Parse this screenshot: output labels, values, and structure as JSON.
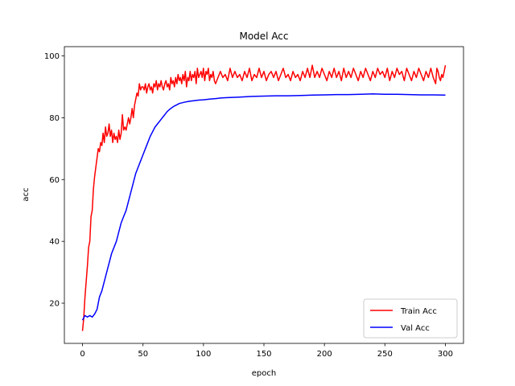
{
  "chart_data": {
    "type": "line",
    "title": "Model Acc",
    "xlabel": "epoch",
    "ylabel": "acc",
    "xlim": [
      -15,
      315
    ],
    "ylim": [
      7,
      103
    ],
    "xticks": [
      0,
      50,
      100,
      150,
      200,
      250,
      300
    ],
    "yticks": [
      20,
      40,
      60,
      80,
      100
    ],
    "grid": false,
    "legend_position": "lower-right",
    "series": [
      {
        "name": "Train Acc",
        "color": "#ff0000",
        "points": [
          [
            0,
            11
          ],
          [
            1,
            15
          ],
          [
            2,
            22
          ],
          [
            3,
            27
          ],
          [
            4,
            32
          ],
          [
            5,
            38
          ],
          [
            6,
            40
          ],
          [
            7,
            48
          ],
          [
            8,
            50
          ],
          [
            9,
            57
          ],
          [
            10,
            61
          ],
          [
            11,
            64
          ],
          [
            12,
            67
          ],
          [
            13,
            70
          ],
          [
            14,
            69
          ],
          [
            15,
            72
          ],
          [
            16,
            71
          ],
          [
            17,
            75
          ],
          [
            18,
            72
          ],
          [
            19,
            77
          ],
          [
            20,
            74
          ],
          [
            21,
            75
          ],
          [
            22,
            78
          ],
          [
            23,
            74
          ],
          [
            24,
            76
          ],
          [
            25,
            72
          ],
          [
            26,
            75
          ],
          [
            27,
            73
          ],
          [
            28,
            74
          ],
          [
            29,
            72
          ],
          [
            30,
            76
          ],
          [
            31,
            73
          ],
          [
            32,
            75
          ],
          [
            33,
            81
          ],
          [
            34,
            76
          ],
          [
            35,
            77
          ],
          [
            36,
            76
          ],
          [
            37,
            78
          ],
          [
            38,
            80
          ],
          [
            39,
            78
          ],
          [
            40,
            80
          ],
          [
            41,
            83
          ],
          [
            42,
            80
          ],
          [
            43,
            84
          ],
          [
            44,
            86
          ],
          [
            45,
            88
          ],
          [
            46,
            87
          ],
          [
            47,
            91
          ],
          [
            48,
            89
          ],
          [
            49,
            90
          ],
          [
            50,
            90
          ],
          [
            51,
            89
          ],
          [
            52,
            91
          ],
          [
            53,
            88
          ],
          [
            54,
            90
          ],
          [
            55,
            91
          ],
          [
            56,
            89
          ],
          [
            57,
            90
          ],
          [
            58,
            88
          ],
          [
            59,
            91
          ],
          [
            60,
            90
          ],
          [
            61,
            92
          ],
          [
            62,
            89
          ],
          [
            63,
            91
          ],
          [
            64,
            90
          ],
          [
            65,
            92
          ],
          [
            66,
            90
          ],
          [
            67,
            89
          ],
          [
            68,
            91
          ],
          [
            69,
            92
          ],
          [
            70,
            90
          ],
          [
            71,
            91
          ],
          [
            72,
            89
          ],
          [
            73,
            93
          ],
          [
            74,
            91
          ],
          [
            75,
            92
          ],
          [
            76,
            90
          ],
          [
            77,
            93
          ],
          [
            78,
            91
          ],
          [
            79,
            94
          ],
          [
            80,
            92
          ],
          [
            81,
            93
          ],
          [
            82,
            91
          ],
          [
            83,
            94
          ],
          [
            84,
            92
          ],
          [
            85,
            95
          ],
          [
            86,
            90
          ],
          [
            87,
            93
          ],
          [
            88,
            92
          ],
          [
            89,
            95
          ],
          [
            90,
            92
          ],
          [
            91,
            94
          ],
          [
            92,
            93
          ],
          [
            93,
            95
          ],
          [
            94,
            91
          ],
          [
            95,
            96
          ],
          [
            96,
            93
          ],
          [
            97,
            94
          ],
          [
            98,
            95
          ],
          [
            99,
            93
          ],
          [
            100,
            96
          ],
          [
            101,
            92
          ],
          [
            102,
            95
          ],
          [
            103,
            94
          ],
          [
            104,
            96
          ],
          [
            105,
            92
          ],
          [
            106,
            94
          ],
          [
            107,
            93
          ],
          [
            108,
            95
          ],
          [
            109,
            92
          ],
          [
            110,
            91
          ],
          [
            112,
            93
          ],
          [
            114,
            95
          ],
          [
            116,
            93
          ],
          [
            118,
            94
          ],
          [
            120,
            92
          ],
          [
            122,
            96
          ],
          [
            124,
            93
          ],
          [
            126,
            95
          ],
          [
            128,
            93
          ],
          [
            130,
            94
          ],
          [
            132,
            92
          ],
          [
            134,
            95
          ],
          [
            136,
            93
          ],
          [
            138,
            96
          ],
          [
            140,
            92
          ],
          [
            142,
            94
          ],
          [
            144,
            93
          ],
          [
            146,
            96
          ],
          [
            148,
            93
          ],
          [
            150,
            95
          ],
          [
            152,
            92
          ],
          [
            154,
            94
          ],
          [
            156,
            95
          ],
          [
            158,
            93
          ],
          [
            160,
            95
          ],
          [
            162,
            92
          ],
          [
            164,
            94
          ],
          [
            166,
            96
          ],
          [
            168,
            93
          ],
          [
            170,
            94
          ],
          [
            172,
            92
          ],
          [
            174,
            95
          ],
          [
            176,
            93
          ],
          [
            178,
            94
          ],
          [
            180,
            92
          ],
          [
            182,
            95
          ],
          [
            184,
            93
          ],
          [
            186,
            96
          ],
          [
            188,
            93
          ],
          [
            190,
            97
          ],
          [
            192,
            93
          ],
          [
            194,
            95
          ],
          [
            196,
            93
          ],
          [
            198,
            96
          ],
          [
            200,
            94
          ],
          [
            202,
            92
          ],
          [
            204,
            95
          ],
          [
            206,
            93
          ],
          [
            208,
            96
          ],
          [
            210,
            93
          ],
          [
            212,
            95
          ],
          [
            214,
            92
          ],
          [
            216,
            96
          ],
          [
            218,
            93
          ],
          [
            220,
            95
          ],
          [
            222,
            93
          ],
          [
            224,
            96
          ],
          [
            226,
            94
          ],
          [
            228,
            92
          ],
          [
            230,
            95
          ],
          [
            232,
            93
          ],
          [
            234,
            96
          ],
          [
            236,
            94
          ],
          [
            238,
            92
          ],
          [
            240,
            95
          ],
          [
            242,
            93
          ],
          [
            244,
            96
          ],
          [
            246,
            94
          ],
          [
            248,
            95
          ],
          [
            250,
            93
          ],
          [
            252,
            96
          ],
          [
            254,
            92
          ],
          [
            256,
            95
          ],
          [
            258,
            93
          ],
          [
            260,
            96
          ],
          [
            262,
            94
          ],
          [
            264,
            95
          ],
          [
            266,
            92
          ],
          [
            268,
            96
          ],
          [
            270,
            94
          ],
          [
            272,
            92
          ],
          [
            274,
            95
          ],
          [
            276,
            93
          ],
          [
            278,
            96
          ],
          [
            280,
            94
          ],
          [
            282,
            92
          ],
          [
            284,
            95
          ],
          [
            286,
            93
          ],
          [
            288,
            96
          ],
          [
            290,
            93
          ],
          [
            292,
            91
          ],
          [
            293,
            96
          ],
          [
            294,
            95
          ],
          [
            295,
            93
          ],
          [
            296,
            92
          ],
          [
            297,
            94
          ],
          [
            298,
            93
          ],
          [
            299,
            95
          ],
          [
            300,
            97
          ]
        ]
      },
      {
        "name": "Val Acc",
        "color": "#0000ff",
        "points": [
          [
            0,
            14.5
          ],
          [
            2,
            16
          ],
          [
            4,
            15.5
          ],
          [
            6,
            16
          ],
          [
            8,
            15.5
          ],
          [
            10,
            16.5
          ],
          [
            12,
            18
          ],
          [
            14,
            22
          ],
          [
            16,
            24
          ],
          [
            18,
            27
          ],
          [
            20,
            30
          ],
          [
            22,
            33
          ],
          [
            24,
            36
          ],
          [
            26,
            38
          ],
          [
            28,
            40
          ],
          [
            30,
            43
          ],
          [
            32,
            46
          ],
          [
            34,
            48
          ],
          [
            36,
            50
          ],
          [
            38,
            53
          ],
          [
            40,
            56
          ],
          [
            42,
            59
          ],
          [
            44,
            62
          ],
          [
            46,
            64
          ],
          [
            48,
            66
          ],
          [
            50,
            68
          ],
          [
            52,
            70
          ],
          [
            54,
            72
          ],
          [
            56,
            74
          ],
          [
            58,
            75.5
          ],
          [
            60,
            77
          ],
          [
            62,
            78
          ],
          [
            64,
            79
          ],
          [
            66,
            80
          ],
          [
            68,
            81
          ],
          [
            70,
            82
          ],
          [
            72,
            82.7
          ],
          [
            74,
            83.3
          ],
          [
            76,
            83.8
          ],
          [
            78,
            84.2
          ],
          [
            80,
            84.6
          ],
          [
            84,
            85
          ],
          [
            88,
            85.3
          ],
          [
            92,
            85.5
          ],
          [
            96,
            85.7
          ],
          [
            100,
            85.8
          ],
          [
            105,
            86
          ],
          [
            110,
            86.2
          ],
          [
            115,
            86.4
          ],
          [
            120,
            86.5
          ],
          [
            130,
            86.7
          ],
          [
            140,
            86.9
          ],
          [
            150,
            87
          ],
          [
            160,
            87.1
          ],
          [
            170,
            87.1
          ],
          [
            180,
            87.2
          ],
          [
            190,
            87.3
          ],
          [
            200,
            87.4
          ],
          [
            210,
            87.5
          ],
          [
            220,
            87.5
          ],
          [
            230,
            87.6
          ],
          [
            240,
            87.7
          ],
          [
            250,
            87.6
          ],
          [
            260,
            87.6
          ],
          [
            270,
            87.5
          ],
          [
            280,
            87.4
          ],
          [
            290,
            87.4
          ],
          [
            300,
            87.3
          ]
        ]
      }
    ]
  }
}
